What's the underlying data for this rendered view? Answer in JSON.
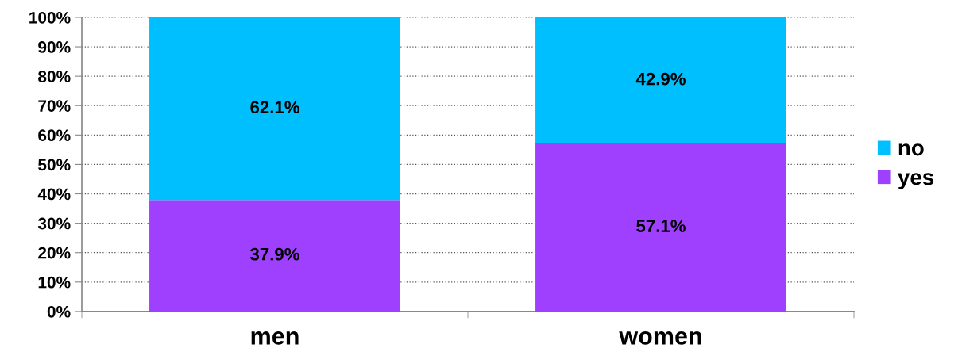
{
  "chart_data": {
    "type": "bar",
    "stacked": true,
    "categories": [
      "men",
      "women"
    ],
    "series": [
      {
        "name": "yes",
        "color": "#a040ff",
        "values": [
          37.9,
          57.1
        ],
        "value_labels": [
          "37.9%",
          "57.1%"
        ]
      },
      {
        "name": "no",
        "color": "#00bfff",
        "values": [
          62.1,
          42.9
        ],
        "value_labels": [
          "62.1%",
          "42.9%"
        ]
      }
    ],
    "ylim": [
      0,
      100
    ],
    "yticks": [
      {
        "value": 0,
        "label": "0%"
      },
      {
        "value": 10,
        "label": "10%"
      },
      {
        "value": 20,
        "label": "20%"
      },
      {
        "value": 30,
        "label": "30%"
      },
      {
        "value": 40,
        "label": "40%"
      },
      {
        "value": 50,
        "label": "50%"
      },
      {
        "value": 60,
        "label": "60%"
      },
      {
        "value": 70,
        "label": "70%"
      },
      {
        "value": 80,
        "label": "80%"
      },
      {
        "value": 90,
        "label": "90%"
      },
      {
        "value": 100,
        "label": "100%"
      }
    ],
    "grid": "y",
    "legend": "right"
  }
}
